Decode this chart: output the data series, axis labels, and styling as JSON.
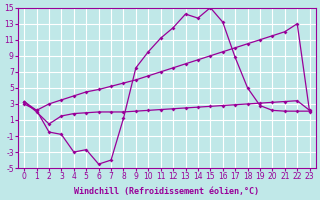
{
  "background_color": "#c0e8e8",
  "grid_color": "#ffffff",
  "line_color": "#990099",
  "xlabel": "Windchill (Refroidissement éolien,°C)",
  "xlim": [
    -0.5,
    23.5
  ],
  "ylim": [
    -5,
    15
  ],
  "yticks": [
    -5,
    -3,
    -1,
    1,
    3,
    5,
    7,
    9,
    11,
    13,
    15
  ],
  "xticks": [
    0,
    1,
    2,
    3,
    4,
    5,
    6,
    7,
    8,
    9,
    10,
    11,
    12,
    13,
    14,
    15,
    16,
    17,
    18,
    19,
    20,
    21,
    22,
    23
  ],
  "series1_x": [
    0,
    1,
    2,
    3,
    4,
    5,
    6,
    7,
    8,
    9,
    10,
    11,
    12,
    13,
    14,
    15,
    16,
    17,
    18,
    19,
    20,
    21,
    22,
    23
  ],
  "series1_y": [
    3.0,
    2.2,
    3.0,
    3.5,
    4.0,
    4.5,
    4.8,
    5.2,
    5.6,
    6.0,
    6.5,
    7.0,
    7.5,
    8.0,
    8.5,
    9.0,
    9.5,
    10.0,
    10.5,
    11.0,
    11.5,
    12.0,
    13.0,
    2.0
  ],
  "series2_x": [
    0,
    1,
    2,
    3,
    4,
    5,
    6,
    7,
    8,
    9,
    10,
    11,
    12,
    13,
    14,
    15,
    16,
    17,
    18,
    19,
    20,
    21,
    22,
    23
  ],
  "series2_y": [
    3.3,
    2.2,
    -0.5,
    -0.8,
    -3.0,
    -2.7,
    -4.5,
    -4.0,
    1.2,
    7.5,
    9.5,
    11.2,
    12.5,
    14.2,
    13.7,
    15.0,
    13.2,
    8.8,
    5.0,
    2.8,
    2.2,
    2.1,
    2.1,
    2.1
  ],
  "series3_x": [
    0,
    1,
    2,
    3,
    4,
    5,
    6,
    7,
    8,
    9,
    10,
    11,
    12,
    13,
    14,
    15,
    16,
    17,
    18,
    19,
    20,
    21,
    22,
    23
  ],
  "series3_y": [
    3.3,
    2.0,
    0.5,
    1.5,
    1.8,
    1.9,
    2.0,
    2.0,
    2.0,
    2.1,
    2.2,
    2.3,
    2.4,
    2.5,
    2.6,
    2.7,
    2.8,
    2.9,
    3.0,
    3.1,
    3.2,
    3.3,
    3.4,
    2.2
  ],
  "xlabel_fontsize": 6,
  "tick_fontsize": 5.5,
  "linewidth": 0.9,
  "marker": "D",
  "markersize": 2.0
}
